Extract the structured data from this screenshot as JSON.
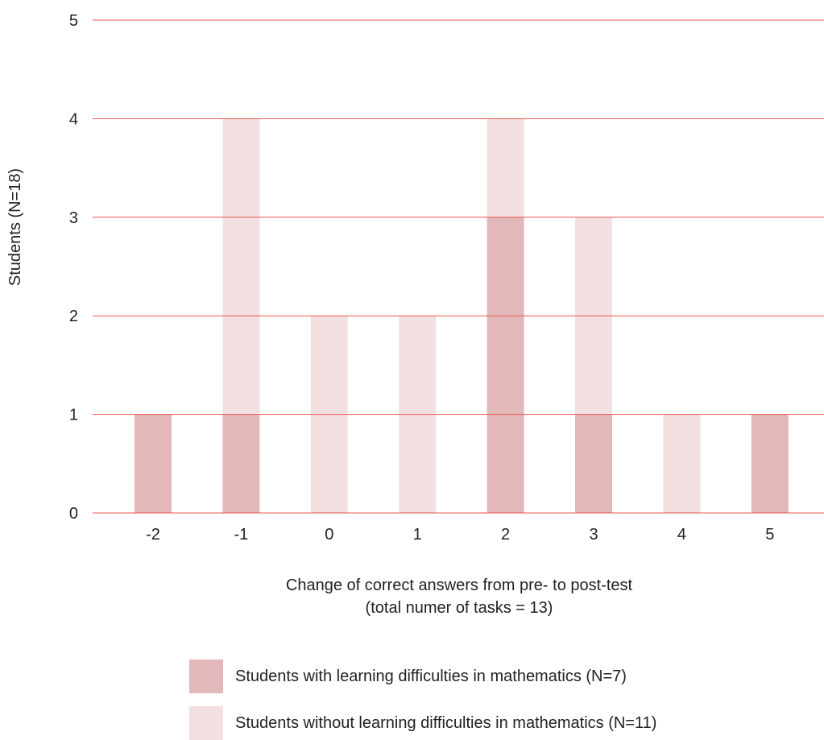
{
  "chart_data": {
    "type": "bar",
    "title": "",
    "xlabel_lines": [
      "Change of correct answers from pre- to post-test",
      "(total numer of tasks = 13)"
    ],
    "ylabel": "Students (N=18)",
    "categories": [
      "-2",
      "-1",
      "0",
      "1",
      "2",
      "3",
      "4",
      "5"
    ],
    "stacked": true,
    "series": [
      {
        "name": "Students with learning difficulties in mathematics (N=7)",
        "values": [
          1,
          1,
          0,
          0,
          3,
          1,
          0,
          1
        ],
        "color": "#e2b8ba"
      },
      {
        "name": "Students without learning difficulties in mathematics (N=11)",
        "values": [
          0,
          3,
          2,
          2,
          1,
          2,
          1,
          0
        ],
        "color": "#f3e0e1"
      }
    ],
    "ylim": [
      0,
      5
    ],
    "yticks": [
      0,
      1,
      2,
      3,
      4,
      5
    ],
    "grid": true,
    "grid_color": "#e8554e",
    "legend_position": "bottom"
  }
}
